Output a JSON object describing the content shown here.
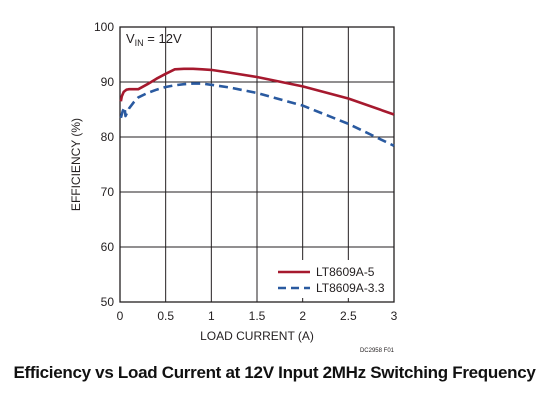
{
  "caption": "Efficiency vs Load Current at 12V Input 2MHz Switching Frequency",
  "figure_id": "DC2958 F01",
  "chart_data": {
    "type": "line",
    "title": "",
    "annotation": {
      "main": "V",
      "sub": "IN",
      "value": " = 12V"
    },
    "xlabel": "LOAD CURRENT (A)",
    "ylabel": "EFFICIENCY (%)",
    "xlim": [
      0,
      3
    ],
    "ylim": [
      50,
      100
    ],
    "xticks": [
      "0",
      "0.5",
      "1",
      "1.5",
      "2",
      "2.5",
      "3"
    ],
    "yticks": [
      "50",
      "60",
      "70",
      "80",
      "90",
      "100"
    ],
    "grid": true,
    "legend_position": "bottom-right",
    "series": [
      {
        "name": "LT8609A-5",
        "color": "#a6192e",
        "style": "solid",
        "x": [
          0.01,
          0.02,
          0.04,
          0.07,
          0.1,
          0.15,
          0.2,
          0.3,
          0.4,
          0.5,
          0.6,
          0.7,
          0.8,
          0.9,
          1.0,
          1.2,
          1.5,
          2.0,
          2.5,
          3.0
        ],
        "y": [
          86.5,
          87.4,
          88.2,
          88.6,
          88.7,
          88.7,
          88.7,
          89.6,
          90.6,
          91.5,
          92.3,
          92.4,
          92.4,
          92.3,
          92.2,
          91.7,
          90.9,
          89.2,
          87.0,
          84.1
        ]
      },
      {
        "name": "LT8609A-3.3",
        "color": "#2a5aa0",
        "style": "dashed",
        "x": [
          0.01,
          0.03,
          0.05,
          0.06,
          0.08,
          0.1,
          0.15,
          0.2,
          0.3,
          0.4,
          0.5,
          0.6,
          0.7,
          0.8,
          0.9,
          1.0,
          1.2,
          1.5,
          2.0,
          2.5,
          3.0
        ],
        "y": [
          83.5,
          84.7,
          85.4,
          83.8,
          84.5,
          85.2,
          86.3,
          87.2,
          88.0,
          88.6,
          89.1,
          89.4,
          89.6,
          89.7,
          89.7,
          89.5,
          89.0,
          88.0,
          85.7,
          82.4,
          78.4
        ]
      }
    ]
  }
}
